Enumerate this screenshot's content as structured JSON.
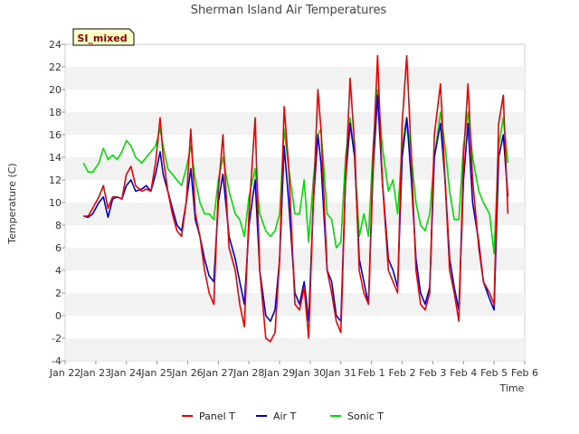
{
  "chart_data": {
    "type": "line",
    "title": "Sherman Island Air Temperatures",
    "xlabel": "Time",
    "ylabel": "Temperature (C)",
    "badge": "SI_mixed",
    "ylim": [
      -4,
      24
    ],
    "xlim": [
      0,
      15
    ],
    "yticks": [
      -4,
      -2,
      0,
      2,
      4,
      6,
      8,
      10,
      12,
      14,
      16,
      18,
      20,
      22,
      24
    ],
    "xticks": [
      {
        "pos": 0,
        "label": "Jan 22"
      },
      {
        "pos": 1,
        "label": "Jan 23"
      },
      {
        "pos": 2,
        "label": "Jan 24"
      },
      {
        "pos": 3,
        "label": "Jan 25"
      },
      {
        "pos": 4,
        "label": "Jan 26"
      },
      {
        "pos": 5,
        "label": "Jan 27"
      },
      {
        "pos": 6,
        "label": "Jan 28"
      },
      {
        "pos": 7,
        "label": "Jan 29"
      },
      {
        "pos": 8,
        "label": "Jan 30"
      },
      {
        "pos": 9,
        "label": "Jan 31"
      },
      {
        "pos": 10,
        "label": "Feb 1"
      },
      {
        "pos": 11,
        "label": "Feb 2"
      },
      {
        "pos": 12,
        "label": "Feb 3"
      },
      {
        "pos": 13,
        "label": "Feb 4"
      },
      {
        "pos": 14,
        "label": "Feb 5"
      },
      {
        "pos": 15,
        "label": "Feb 6"
      }
    ],
    "legend": {
      "placement": "bottom-center"
    },
    "series": [
      {
        "name": "Panel T",
        "color": "#ee0000",
        "x": [
          0.6,
          0.75,
          0.9,
          1.1,
          1.25,
          1.4,
          1.55,
          1.7,
          1.85,
          2.0,
          2.15,
          2.3,
          2.5,
          2.65,
          2.8,
          2.95,
          3.1,
          3.2,
          3.35,
          3.5,
          3.65,
          3.8,
          3.95,
          4.1,
          4.25,
          4.4,
          4.55,
          4.7,
          4.85,
          5.0,
          5.15,
          5.35,
          5.55,
          5.7,
          5.85,
          6.0,
          6.2,
          6.35,
          6.55,
          6.7,
          6.85,
          7.0,
          7.15,
          7.3,
          7.5,
          7.65,
          7.8,
          7.95,
          8.1,
          8.25,
          8.35,
          8.55,
          8.7,
          8.85,
          9.0,
          9.15,
          9.3,
          9.45,
          9.6,
          9.75,
          9.9,
          10.05,
          10.2,
          10.35,
          10.55,
          10.7,
          10.85,
          11.0,
          11.15,
          11.3,
          11.45,
          11.6,
          11.75,
          11.9,
          12.05,
          12.25,
          12.4,
          12.55,
          12.7,
          12.85,
          13.0,
          13.15,
          13.3,
          13.5,
          13.65,
          13.85,
          14.0,
          14.15,
          14.3,
          14.45
        ],
        "y": [
          8.8,
          8.8,
          9.5,
          10.5,
          11.5,
          9.5,
          10.5,
          10.5,
          10.3,
          12.5,
          13.2,
          11.5,
          11.0,
          11.2,
          11.0,
          13.5,
          17.5,
          14.0,
          11.0,
          9.0,
          7.5,
          7.0,
          10.0,
          16.5,
          9.0,
          7.0,
          4.0,
          2.0,
          1.0,
          11.0,
          16.0,
          6.0,
          4.0,
          1.0,
          -1.0,
          9.0,
          17.5,
          4.0,
          -2.0,
          -2.3,
          -1.5,
          5.0,
          18.5,
          13.0,
          1.0,
          0.5,
          2.5,
          -2.0,
          10.0,
          20.0,
          16.5,
          4.0,
          2.0,
          -0.5,
          -1.5,
          12.0,
          21.0,
          15.0,
          4.0,
          2.0,
          1.0,
          14.0,
          23.0,
          12.0,
          4.0,
          3.0,
          2.0,
          17.0,
          23.0,
          14.0,
          4.0,
          1.0,
          0.5,
          2.0,
          16.0,
          20.5,
          12.0,
          4.0,
          2.0,
          -0.5,
          14.0,
          20.5,
          12.0,
          6.0,
          3.0,
          2.0,
          1.0,
          17.0,
          19.5,
          9.0
        ]
      },
      {
        "name": "Air T",
        "color": "#0000cc",
        "x": [
          0.6,
          0.75,
          0.9,
          1.1,
          1.25,
          1.4,
          1.55,
          1.7,
          1.85,
          2.0,
          2.15,
          2.3,
          2.5,
          2.65,
          2.8,
          2.95,
          3.1,
          3.2,
          3.35,
          3.5,
          3.65,
          3.8,
          3.95,
          4.1,
          4.25,
          4.4,
          4.55,
          4.7,
          4.85,
          5.0,
          5.15,
          5.35,
          5.55,
          5.7,
          5.85,
          6.0,
          6.2,
          6.35,
          6.55,
          6.7,
          6.85,
          7.0,
          7.15,
          7.3,
          7.5,
          7.65,
          7.8,
          7.95,
          8.1,
          8.25,
          8.35,
          8.55,
          8.7,
          8.85,
          9.0,
          9.15,
          9.3,
          9.45,
          9.6,
          9.75,
          9.9,
          10.05,
          10.2,
          10.35,
          10.55,
          10.7,
          10.85,
          11.0,
          11.15,
          11.3,
          11.45,
          11.6,
          11.75,
          11.9,
          12.05,
          12.25,
          12.4,
          12.55,
          12.7,
          12.85,
          13.0,
          13.15,
          13.3,
          13.5,
          13.65,
          13.85,
          14.0,
          14.15,
          14.3,
          14.45
        ],
        "y": [
          8.8,
          8.7,
          9.0,
          10.0,
          10.5,
          8.7,
          10.3,
          10.5,
          10.3,
          11.5,
          12.0,
          11.0,
          11.2,
          11.5,
          11.0,
          12.5,
          14.5,
          12.5,
          11.0,
          9.5,
          8.0,
          7.5,
          10.0,
          13.0,
          8.5,
          7.0,
          5.0,
          3.5,
          3.0,
          10.0,
          12.5,
          7.0,
          5.0,
          3.0,
          1.0,
          8.0,
          12.0,
          4.0,
          0.0,
          -0.5,
          0.5,
          5.0,
          15.0,
          10.0,
          2.0,
          1.0,
          3.0,
          -0.5,
          10.0,
          16.0,
          13.5,
          4.0,
          3.0,
          0.0,
          -0.5,
          12.0,
          17.0,
          14.0,
          5.0,
          3.0,
          1.0,
          13.0,
          19.5,
          12.0,
          5.0,
          4.0,
          2.5,
          14.0,
          17.5,
          12.0,
          5.0,
          2.0,
          1.0,
          2.5,
          14.0,
          17.0,
          12.0,
          5.0,
          2.5,
          0.5,
          12.0,
          17.0,
          10.0,
          6.5,
          3.0,
          1.5,
          0.5,
          14.0,
          16.0,
          10.5
        ]
      },
      {
        "name": "Sonic T",
        "color": "#00dd00",
        "x": [
          0.6,
          0.75,
          0.9,
          1.1,
          1.25,
          1.4,
          1.55,
          1.7,
          1.85,
          2.0,
          2.15,
          2.3,
          2.5,
          2.65,
          2.8,
          2.95,
          3.1,
          3.2,
          3.35,
          3.5,
          3.65,
          3.8,
          3.95,
          4.1,
          4.25,
          4.4,
          4.55,
          4.7,
          4.85,
          5.0,
          5.15,
          5.35,
          5.55,
          5.7,
          5.85,
          6.0,
          6.2,
          6.35,
          6.55,
          6.7,
          6.85,
          7.0,
          7.15,
          7.3,
          7.5,
          7.65,
          7.8,
          7.95,
          8.1,
          8.25,
          8.35,
          8.55,
          8.7,
          8.85,
          9.0,
          9.15,
          9.3,
          9.45,
          9.6,
          9.75,
          9.9,
          10.05,
          10.2,
          10.35,
          10.55,
          10.7,
          10.85,
          11.0,
          11.15,
          11.3,
          11.45,
          11.6,
          11.75,
          11.9,
          12.05,
          12.25,
          12.4,
          12.55,
          12.7,
          12.85,
          13.0,
          13.15,
          13.3,
          13.5,
          13.65,
          13.85,
          14.0,
          14.15,
          14.3,
          14.45
        ],
        "y": [
          13.5,
          12.7,
          12.7,
          13.5,
          14.8,
          13.8,
          14.2,
          13.8,
          14.5,
          15.5,
          15.0,
          14.0,
          13.5,
          14.0,
          14.5,
          15.0,
          16.5,
          15.0,
          13.0,
          12.5,
          12.0,
          11.5,
          13.0,
          15.0,
          12.0,
          10.0,
          9.0,
          9.0,
          8.5,
          12.0,
          14.0,
          11.0,
          9.0,
          8.5,
          7.0,
          10.5,
          13.0,
          9.0,
          7.5,
          7.0,
          7.5,
          9.0,
          16.5,
          13.0,
          9.0,
          9.0,
          12.0,
          6.5,
          12.0,
          16.0,
          16.5,
          9.0,
          8.5,
          6.0,
          6.5,
          14.0,
          17.5,
          14.0,
          7.0,
          9.0,
          7.0,
          15.0,
          20.0,
          15.0,
          11.0,
          12.0,
          9.0,
          15.0,
          17.5,
          14.0,
          10.0,
          8.0,
          7.5,
          9.0,
          14.0,
          18.0,
          15.0,
          11.0,
          8.5,
          8.5,
          15.0,
          18.0,
          14.0,
          11.0,
          10.0,
          9.0,
          5.5,
          15.0,
          17.5,
          13.5
        ]
      }
    ]
  }
}
